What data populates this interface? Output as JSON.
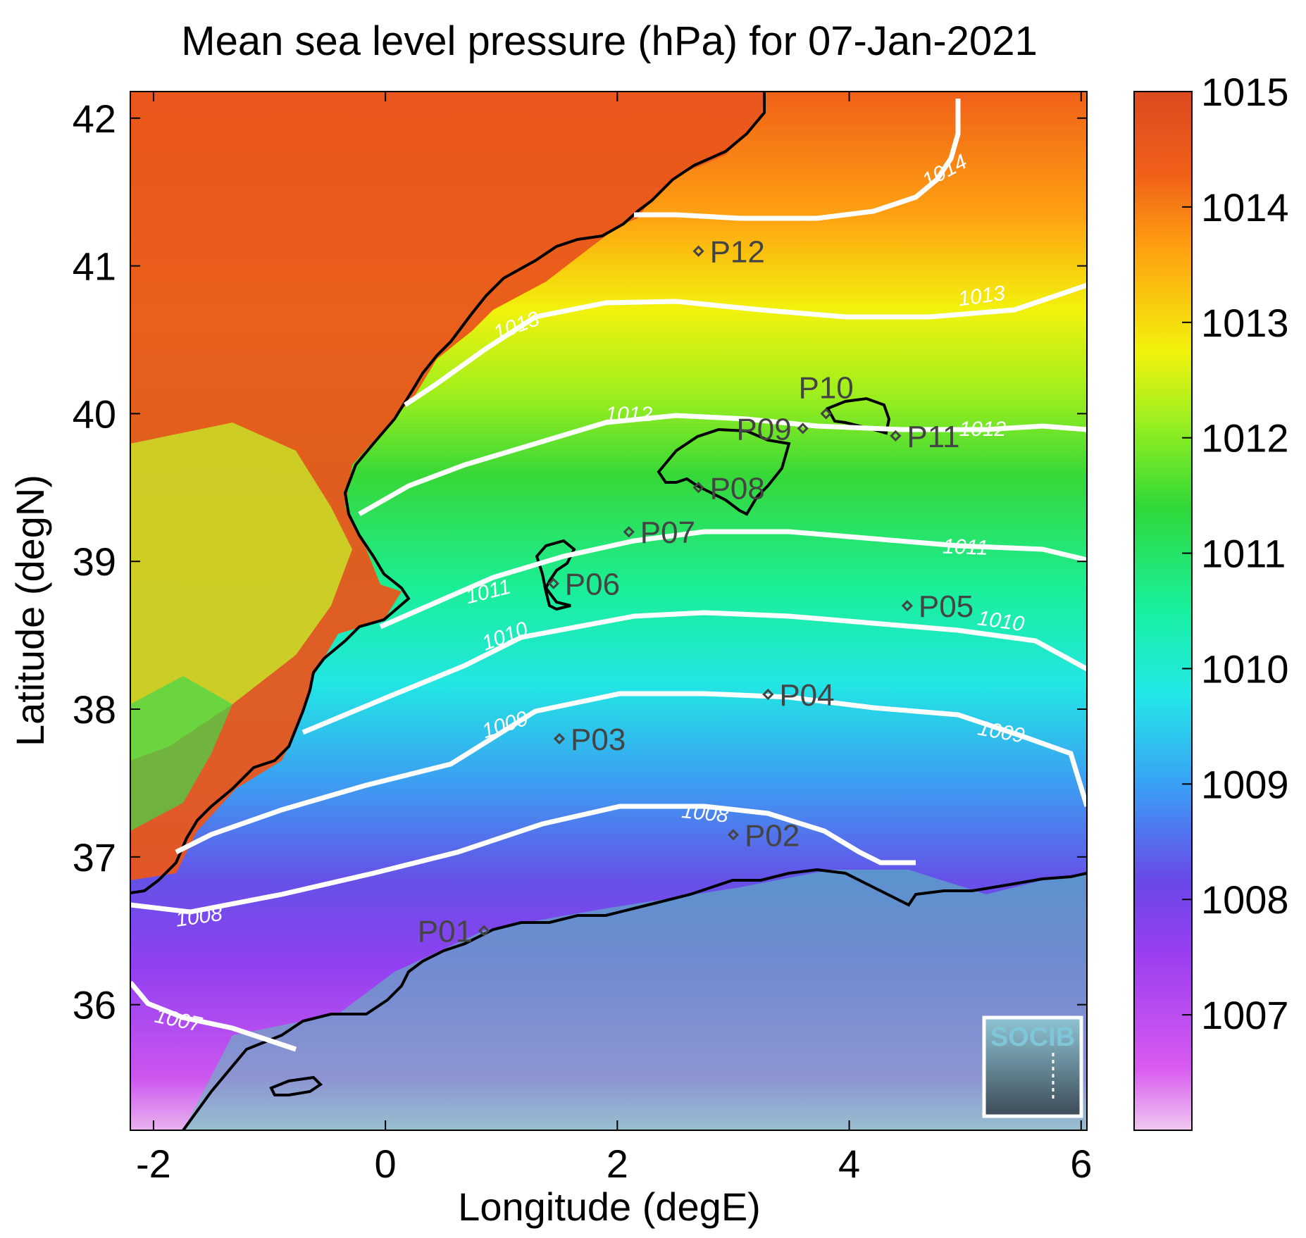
{
  "title": "Mean sea level pressure (hPa) for 07-Jan-2021",
  "xlabel": "Longitude (degE)",
  "ylabel": "Latitude (degN)",
  "x_ticks": [
    {
      "value": -2,
      "label": "-2"
    },
    {
      "value": 0,
      "label": "0"
    },
    {
      "value": 2,
      "label": "2"
    },
    {
      "value": 4,
      "label": "4"
    },
    {
      "value": 6,
      "label": "6"
    }
  ],
  "y_ticks": [
    {
      "value": 36,
      "label": "36"
    },
    {
      "value": 37,
      "label": "37"
    },
    {
      "value": 38,
      "label": "38"
    },
    {
      "value": 39,
      "label": "39"
    },
    {
      "value": 40,
      "label": "40"
    },
    {
      "value": 41,
      "label": "41"
    },
    {
      "value": 42,
      "label": "42"
    }
  ],
  "colorbar": {
    "range": [
      1006,
      1015
    ],
    "ticks": [
      {
        "value": 1007,
        "label": "1007"
      },
      {
        "value": 1008,
        "label": "1008"
      },
      {
        "value": 1009,
        "label": "1009"
      },
      {
        "value": 1010,
        "label": "1010"
      },
      {
        "value": 1011,
        "label": "1011"
      },
      {
        "value": 1012,
        "label": "1012"
      },
      {
        "value": 1013,
        "label": "1013"
      },
      {
        "value": 1014,
        "label": "1014"
      },
      {
        "value": 1015,
        "label": "1015"
      }
    ]
  },
  "contour_labels": [
    {
      "text": "1007",
      "lon": -1.8,
      "lat": 35.85,
      "rot": 12
    },
    {
      "text": "1008",
      "lon": -1.6,
      "lat": 36.55,
      "rot": -8
    },
    {
      "text": "1008",
      "lon": 2.75,
      "lat": 37.25,
      "rot": 6
    },
    {
      "text": "1009",
      "lon": 1.05,
      "lat": 37.85,
      "rot": -18
    },
    {
      "text": "1009",
      "lon": 5.3,
      "lat": 37.8,
      "rot": 10
    },
    {
      "text": "1010",
      "lon": 1.05,
      "lat": 38.45,
      "rot": -20
    },
    {
      "text": "1010",
      "lon": 5.3,
      "lat": 38.55,
      "rot": 8
    },
    {
      "text": "1011",
      "lon": 0.9,
      "lat": 38.75,
      "rot": -14
    },
    {
      "text": "1011",
      "lon": 5.0,
      "lat": 39.05,
      "rot": 2
    },
    {
      "text": "1012",
      "lon": 2.1,
      "lat": 39.95,
      "rot": 0
    },
    {
      "text": "1012",
      "lon": 5.15,
      "lat": 39.85,
      "rot": 0
    },
    {
      "text": "1013",
      "lon": 1.15,
      "lat": 40.55,
      "rot": -20
    },
    {
      "text": "1013",
      "lon": 5.15,
      "lat": 40.75,
      "rot": -8
    },
    {
      "text": "1014",
      "lon": 4.85,
      "lat": 41.6,
      "rot": -28
    }
  ],
  "points": [
    {
      "label": "P01",
      "lon": 0.85,
      "lat": 36.5,
      "side": "left"
    },
    {
      "label": "P02",
      "lon": 3.0,
      "lat": 37.15,
      "side": "right"
    },
    {
      "label": "P03",
      "lon": 1.5,
      "lat": 37.8,
      "side": "right"
    },
    {
      "label": "P04",
      "lon": 3.3,
      "lat": 38.1,
      "side": "right"
    },
    {
      "label": "P05",
      "lon": 4.5,
      "lat": 38.7,
      "side": "right"
    },
    {
      "label": "P06",
      "lon": 1.45,
      "lat": 38.85,
      "side": "right"
    },
    {
      "label": "P07",
      "lon": 2.1,
      "lat": 39.2,
      "side": "right"
    },
    {
      "label": "P08",
      "lon": 2.7,
      "lat": 39.5,
      "side": "right"
    },
    {
      "label": "P09",
      "lon": 3.6,
      "lat": 39.9,
      "side": "left"
    },
    {
      "label": "P10",
      "lon": 3.8,
      "lat": 40.0,
      "side": "above"
    },
    {
      "label": "P11",
      "lon": 4.4,
      "lat": 39.85,
      "side": "right"
    },
    {
      "label": "P12",
      "lon": 2.7,
      "lat": 41.1,
      "side": "right"
    }
  ],
  "logo": {
    "text": "SOCIB"
  },
  "colors": {
    "coast": "#000000",
    "contour": "#ffffff",
    "marker": "#444444"
  }
}
